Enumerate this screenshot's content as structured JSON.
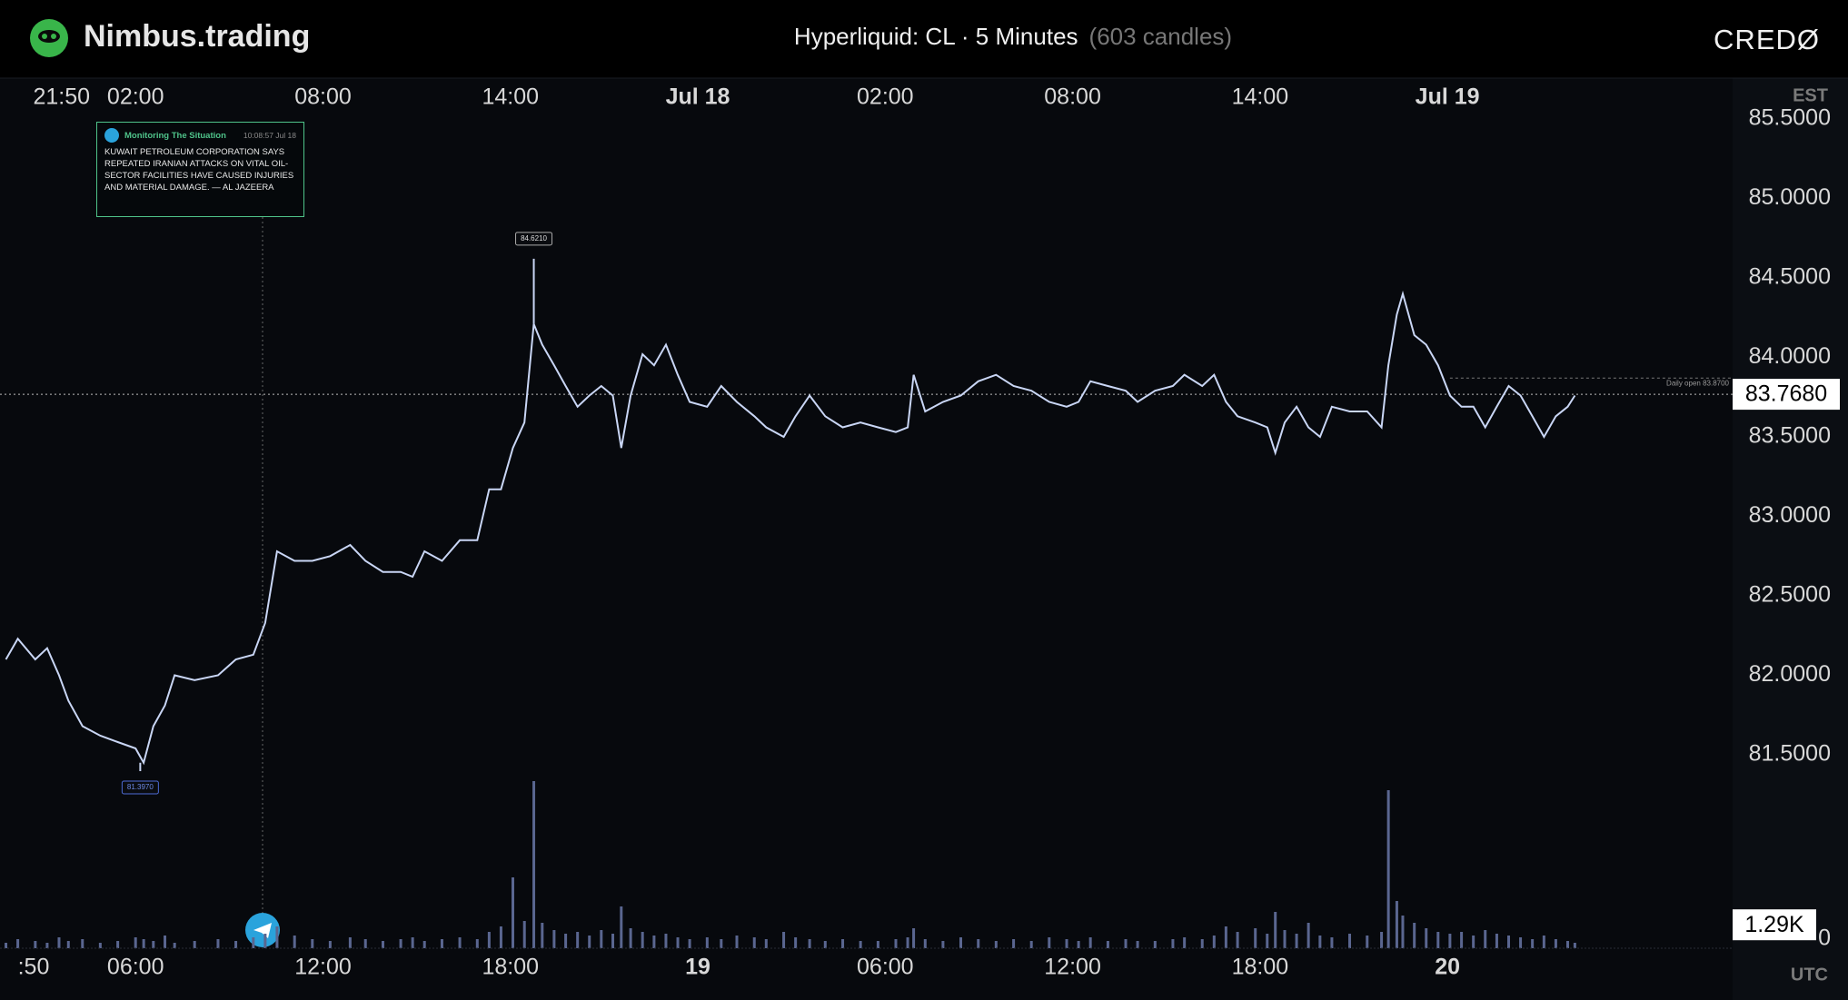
{
  "header": {
    "brand": "Nimbus.trading",
    "market": "Hyperliquid: CL · 5 Minutes",
    "candle_count": "(603 candles)",
    "partner": "CREDØ"
  },
  "annotation": {
    "source": "Monitoring The Situation",
    "time": "10:08:57 Jul 18",
    "text": "KUWAIT PETROLEUM CORPORATION SAYS REPEATED IRANIAN ATTACKS ON VITAL OIL-SECTOR FACILITIES HAVE CAUSED INJURIES AND MATERIAL DAMAGE. — AL JAZEERA",
    "x": 6.07
  },
  "chart_data": {
    "type": "line",
    "grid": false,
    "x": [
      -2.15,
      -1.77,
      -1.21,
      -0.83,
      -0.45,
      -0.15,
      0.3,
      0.87,
      1.43,
      2.0,
      2.26,
      2.57,
      2.94,
      3.25,
      3.89,
      4.64,
      5.21,
      5.77,
      6.15,
      6.53,
      7.09,
      7.66,
      8.23,
      8.87,
      9.36,
      9.92,
      10.49,
      10.87,
      11.25,
      11.81,
      12.38,
      12.94,
      13.32,
      13.7,
      14.08,
      14.45,
      14.75,
      15.02,
      15.4,
      15.77,
      16.15,
      16.53,
      16.91,
      17.28,
      17.55,
      17.85,
      18.23,
      18.6,
      18.98,
      19.36,
      19.74,
      20.3,
      20.75,
      21.25,
      21.81,
      22.19,
      22.75,
      23.13,
      23.58,
      24.08,
      24.64,
      25.21,
      25.77,
      26.34,
      26.72,
      26.91,
      27.28,
      27.85,
      28.42,
      28.98,
      29.55,
      30.11,
      30.68,
      31.25,
      31.81,
      32.19,
      32.57,
      33.13,
      33.7,
      34.08,
      34.64,
      35.21,
      35.58,
      36.15,
      36.53,
      36.91,
      37.28,
      37.85,
      38.23,
      38.49,
      38.79,
      39.17,
      39.55,
      39.92,
      40.3,
      40.87,
      41.43,
      41.89,
      42.11,
      42.38,
      42.57,
      42.94,
      43.32,
      43.7,
      44.08,
      44.45,
      44.83,
      45.21,
      45.58,
      45.96,
      46.34,
      46.72,
      47.09,
      47.47,
      47.85,
      48.08
    ],
    "series": [
      {
        "name": "CL",
        "color": "#c9d6f5",
        "values": [
          82.1,
          82.23,
          82.1,
          82.17,
          82.0,
          81.84,
          81.68,
          81.62,
          81.58,
          81.54,
          81.45,
          81.68,
          81.81,
          82.0,
          81.97,
          82.0,
          82.1,
          82.13,
          82.33,
          82.78,
          82.72,
          82.72,
          82.75,
          82.82,
          82.72,
          82.65,
          82.65,
          82.62,
          82.78,
          82.72,
          82.85,
          82.85,
          83.17,
          83.17,
          83.43,
          83.59,
          84.21,
          84.08,
          83.95,
          83.82,
          83.69,
          83.76,
          83.82,
          83.76,
          83.43,
          83.76,
          84.02,
          83.95,
          84.08,
          83.89,
          83.72,
          83.69,
          83.82,
          83.72,
          83.63,
          83.56,
          83.5,
          83.63,
          83.76,
          83.63,
          83.56,
          83.59,
          83.56,
          83.53,
          83.56,
          83.89,
          83.66,
          83.72,
          83.76,
          83.85,
          83.89,
          83.82,
          83.79,
          83.72,
          83.69,
          83.72,
          83.85,
          83.82,
          83.79,
          83.72,
          83.79,
          83.82,
          83.89,
          83.82,
          83.89,
          83.72,
          83.63,
          83.59,
          83.56,
          83.4,
          83.59,
          83.69,
          83.56,
          83.5,
          83.69,
          83.66,
          83.66,
          83.56,
          83.95,
          84.27,
          84.4,
          84.14,
          84.08,
          83.95,
          83.76,
          83.69,
          83.69,
          83.56,
          83.69,
          83.82,
          83.76,
          83.63,
          83.5,
          83.63,
          83.69,
          83.76
        ]
      },
      {
        "name": "Volume",
        "color": "#5a6690",
        "axis": "y2",
        "values": [
          300,
          500,
          400,
          300,
          600,
          400,
          500,
          300,
          400,
          600,
          500,
          400,
          700,
          300,
          400,
          500,
          400,
          600,
          800,
          1200,
          700,
          500,
          400,
          600,
          500,
          400,
          500,
          600,
          400,
          500,
          600,
          500,
          900,
          1200,
          3900,
          1500,
          9200,
          1400,
          1000,
          800,
          900,
          700,
          1000,
          800,
          2300,
          1100,
          900,
          700,
          800,
          600,
          500,
          600,
          500,
          700,
          600,
          500,
          900,
          600,
          500,
          400,
          500,
          400,
          400,
          500,
          600,
          1100,
          500,
          400,
          600,
          500,
          400,
          500,
          400,
          600,
          500,
          400,
          600,
          400,
          500,
          400,
          400,
          500,
          600,
          500,
          700,
          1200,
          900,
          1100,
          800,
          2000,
          1000,
          800,
          1400,
          700,
          600,
          800,
          700,
          900,
          8700,
          2600,
          1800,
          1400,
          1100,
          900,
          800,
          900,
          700,
          1000,
          800,
          700,
          600,
          500,
          700,
          500,
          400,
          300
        ]
      }
    ],
    "xlim": [
      -2.34,
      53.13
    ],
    "xticks": [
      {
        "value": -1.28,
        "label": "21:50"
      },
      {
        "value": 2,
        "label": "02:00"
      },
      {
        "value": 8,
        "label": "08:00"
      },
      {
        "value": 14,
        "label": "14:00"
      },
      {
        "value": 20,
        "label": "Jul 18",
        "bold": true
      },
      {
        "value": 26,
        "label": "02:00"
      },
      {
        "value": 32,
        "label": "08:00"
      },
      {
        "value": 38,
        "label": "14:00"
      },
      {
        "value": 44,
        "label": "Jul 19",
        "bold": true
      }
    ],
    "x2ticks": [
      {
        "value": -1.77,
        "label": ":50"
      },
      {
        "value": 2,
        "label": "06:00"
      },
      {
        "value": 8,
        "label": "12:00"
      },
      {
        "value": 14,
        "label": "18:00"
      },
      {
        "value": 20,
        "label": "19",
        "bold": true
      },
      {
        "value": 26,
        "label": "06:00"
      },
      {
        "value": 32,
        "label": "12:00"
      },
      {
        "value": 38,
        "label": "18:00"
      },
      {
        "value": 44,
        "label": "20",
        "bold": true
      }
    ],
    "xlabel": "EST",
    "x2label": "UTC",
    "ylim": [
      80.935,
      85.725
    ],
    "yticks": [
      {
        "value": 85.5,
        "label": "85.5000"
      },
      {
        "value": 85,
        "label": "85.0000"
      },
      {
        "value": 84.5,
        "label": "84.5000"
      },
      {
        "value": 84,
        "label": "84.0000"
      },
      {
        "value": 83.5,
        "label": "83.5000"
      },
      {
        "value": 83,
        "label": "83.0000"
      },
      {
        "value": 82.5,
        "label": "82.5000"
      },
      {
        "value": 82,
        "label": "82.0000"
      },
      {
        "value": 81.5,
        "label": "81.5000"
      }
    ],
    "y2lim": [
      0,
      10000
    ],
    "y2ticks": [
      0
    ],
    "high": {
      "x": 14.75,
      "value": 84.621,
      "label": "84.6210"
    },
    "low": {
      "x": 2.15,
      "value": 81.397,
      "label": "81.3970"
    },
    "last_price": {
      "value": 83.768,
      "label": "83.7680"
    },
    "daily_open": {
      "x": 44.08,
      "value": 83.87,
      "label": "Daily open 83.8700"
    },
    "last_volume": {
      "value": 1290,
      "label": "1.29K"
    }
  }
}
